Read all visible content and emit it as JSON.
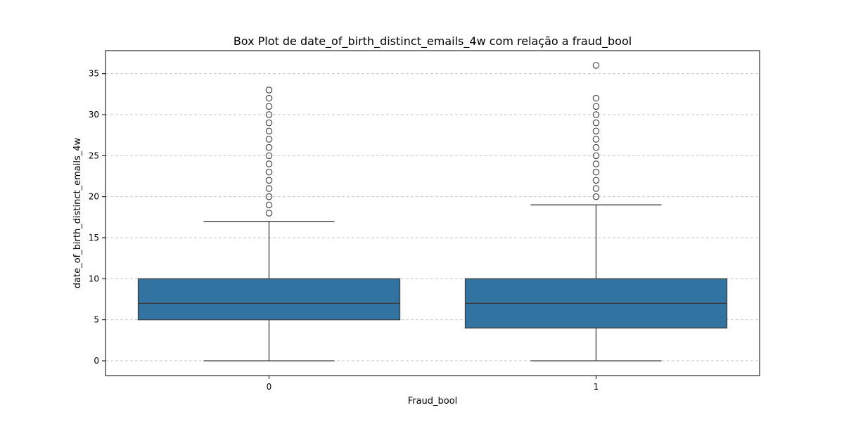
{
  "chart_data": {
    "type": "box",
    "title": "Box Plot de date_of_birth_distinct_emails_4w com relação a fraud_bool",
    "xlabel": "Fraud_bool",
    "ylabel": "date_of_birth_distinct_emails_4w",
    "categories": [
      "0",
      "1"
    ],
    "ylim": [
      -1.8,
      37.8
    ],
    "yticks": [
      0,
      5,
      10,
      15,
      20,
      25,
      30,
      35
    ],
    "grid": "horizontal-dashed",
    "box_color": "#3274a1",
    "line_color": "#3d3d3d",
    "boxes": [
      {
        "category": "0",
        "whisker_low": 0,
        "q1": 5,
        "median": 7,
        "q3": 10,
        "whisker_high": 17,
        "outliers": [
          18,
          19,
          20,
          21,
          22,
          23,
          24,
          25,
          26,
          27,
          28,
          29,
          30,
          31,
          32,
          33
        ]
      },
      {
        "category": "1",
        "whisker_low": 0,
        "q1": 4,
        "median": 7,
        "q3": 10,
        "whisker_high": 19,
        "outliers": [
          20,
          21,
          22,
          23,
          24,
          25,
          26,
          27,
          28,
          29,
          30,
          31,
          32,
          36
        ]
      }
    ]
  }
}
